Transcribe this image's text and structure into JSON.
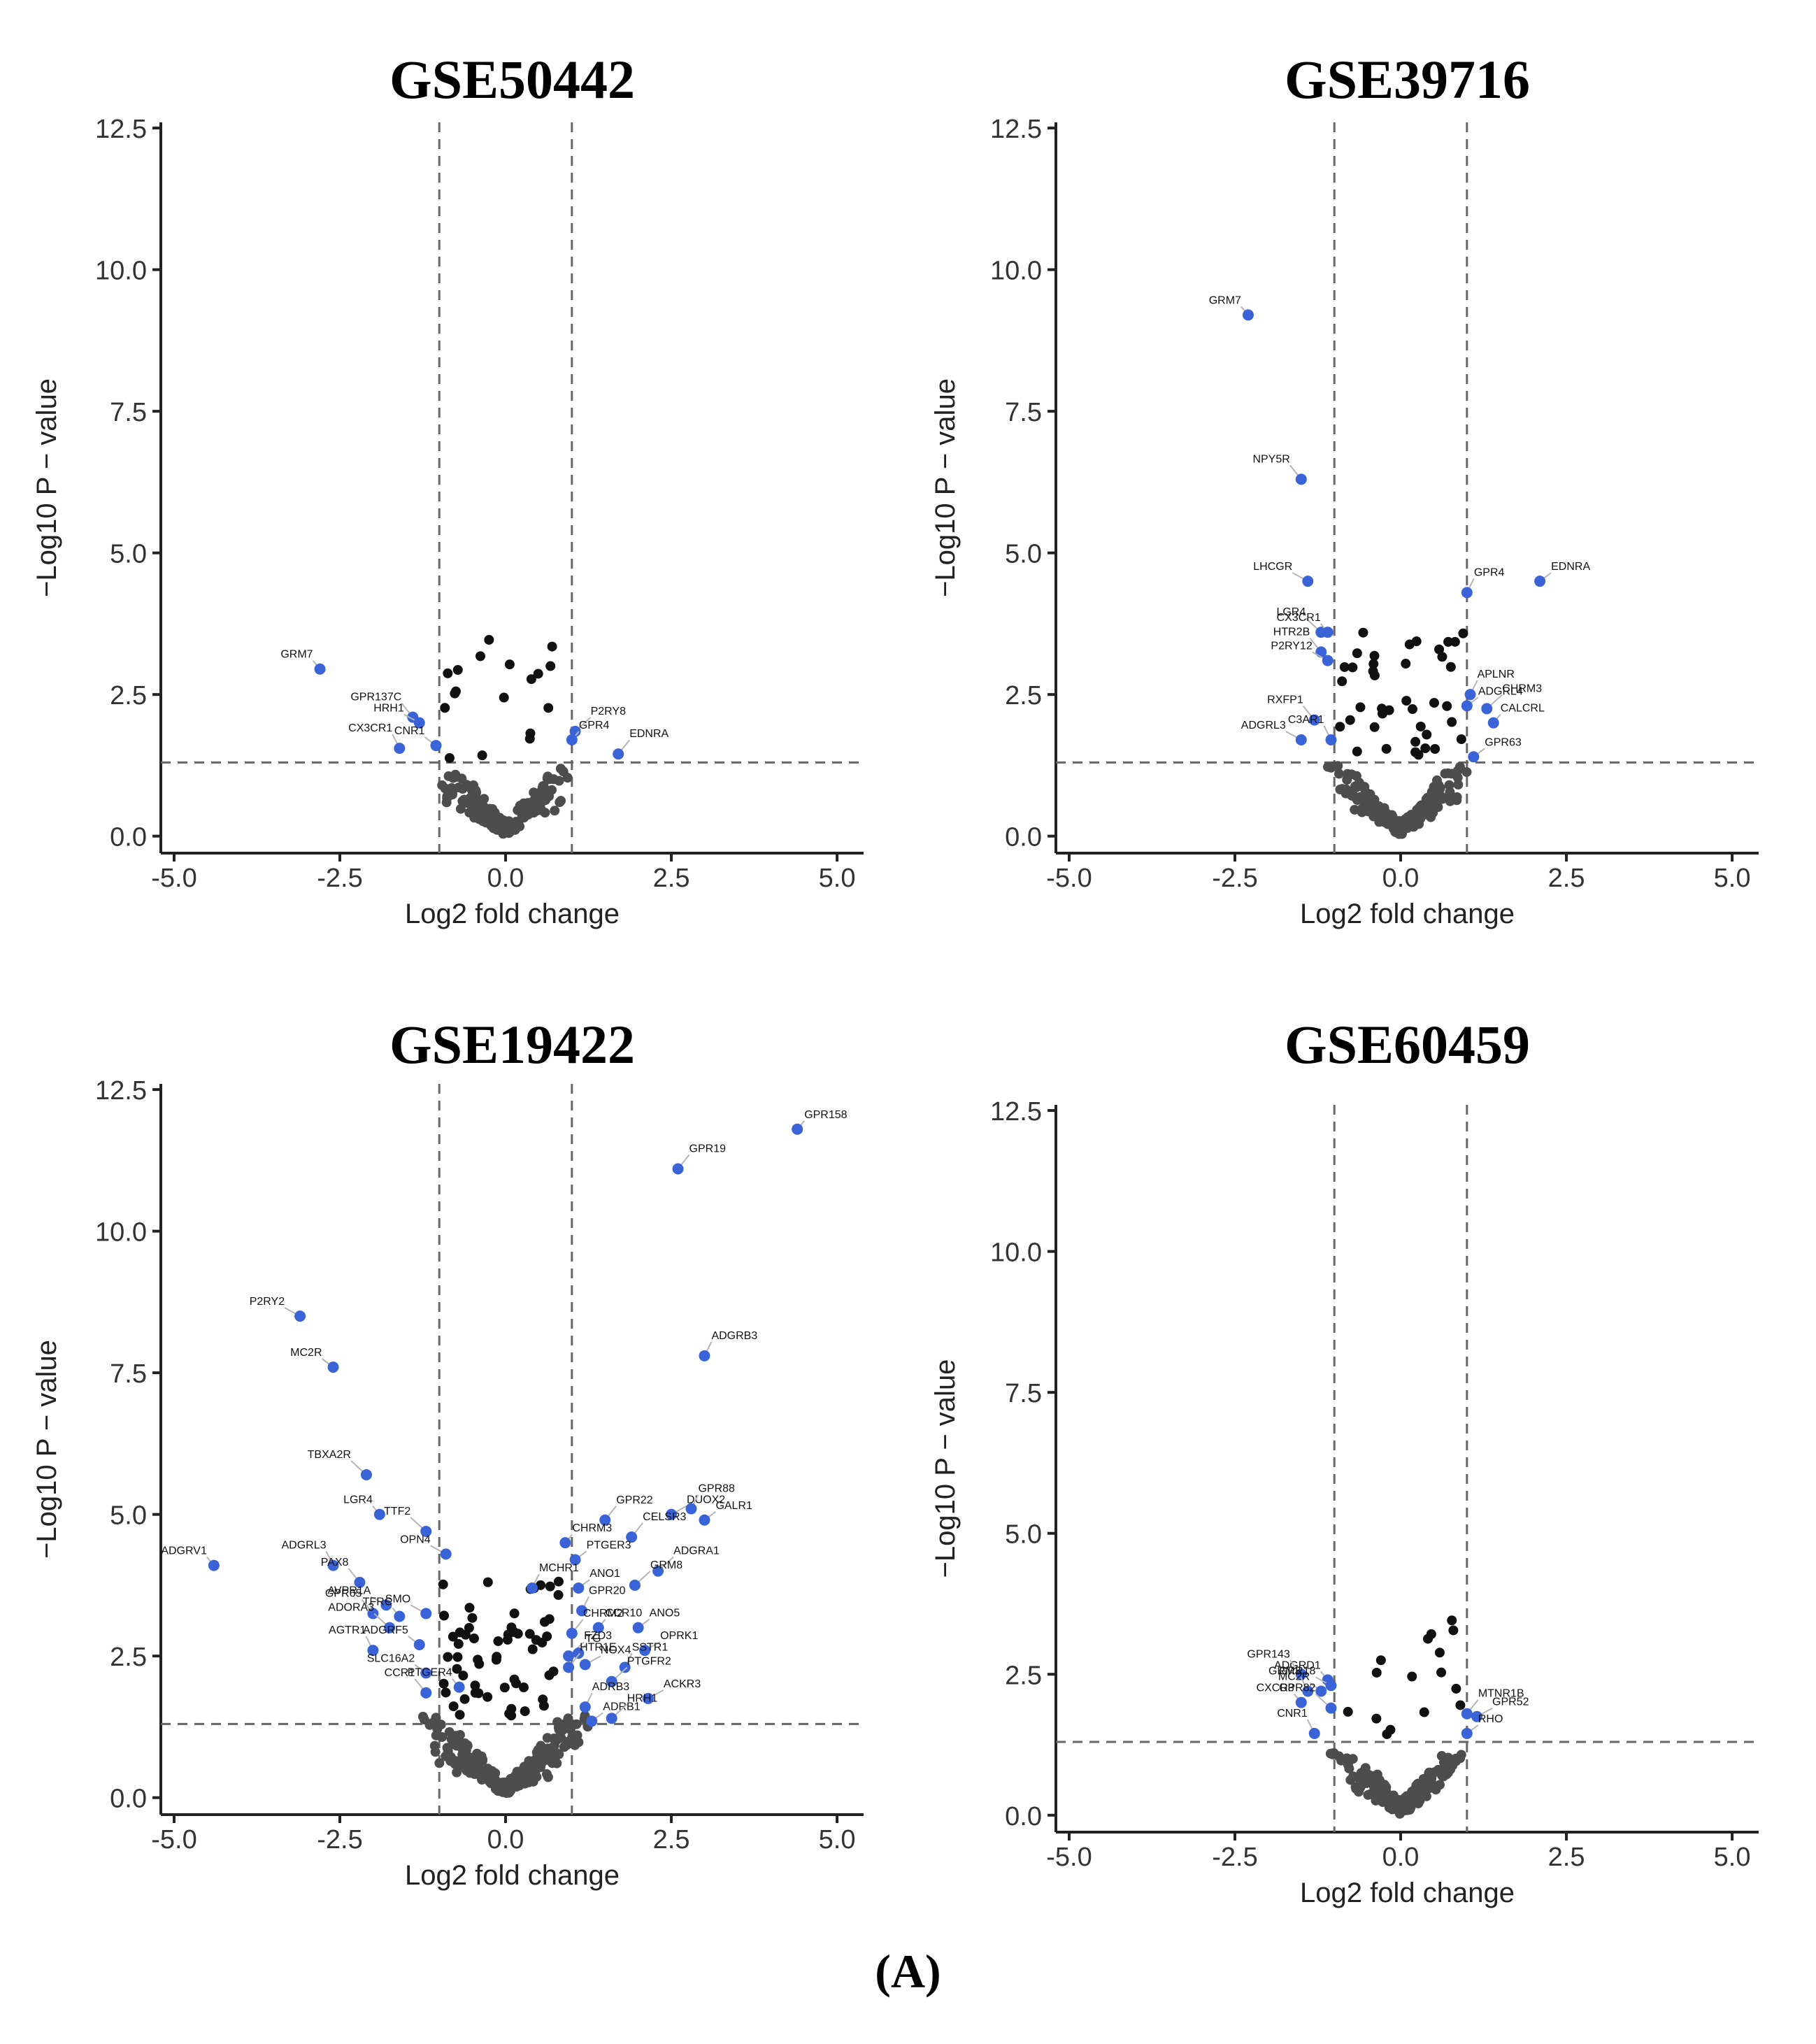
{
  "figure_label": "(A)",
  "colors": {
    "sig": "#3a63d8",
    "mid": "#111111",
    "ns": "#4d4d4d",
    "axis": "#222222",
    "guide": "#666666",
    "label_line": "#b5b5b5"
  },
  "chart_data": [
    {
      "type": "scatter",
      "title": "GSE50442",
      "xlabel": "Log2 fold change",
      "ylabel": "−Log10 P − value",
      "xlim": [
        -5.2,
        5.4
      ],
      "ylim": [
        -0.3,
        12.6
      ],
      "xticks": [
        -5.0,
        -2.5,
        0.0,
        2.5,
        5.0
      ],
      "yticks": [
        0.0,
        2.5,
        5.0,
        7.5,
        10.0,
        12.5
      ],
      "fc_cutoff": 1.0,
      "p_cutoff": 1.3,
      "labeled_points": [
        {
          "label": "GRM7",
          "x": -2.8,
          "y": 2.95
        },
        {
          "label": "GPR137C",
          "x": -1.4,
          "y": 2.1
        },
        {
          "label": "HRH1",
          "x": -1.3,
          "y": 2.0
        },
        {
          "label": "CX3CR1",
          "x": -1.6,
          "y": 1.55
        },
        {
          "label": "CNR1",
          "x": -1.05,
          "y": 1.6
        },
        {
          "label": "P2RY8",
          "x": 1.05,
          "y": 1.85
        },
        {
          "label": "GPR4",
          "x": 1.0,
          "y": 1.7
        },
        {
          "label": "EDNRA",
          "x": 1.7,
          "y": 1.45
        }
      ],
      "n_background": 170,
      "n_mid": 18,
      "bg_spread_y": 1.0,
      "bg_spread_x": 1.1
    },
    {
      "type": "scatter",
      "title": "GSE39716",
      "xlabel": "Log2 fold change",
      "ylabel": "−Log10 P − value",
      "xlim": [
        -5.2,
        5.4
      ],
      "ylim": [
        -0.3,
        12.6
      ],
      "xticks": [
        -5.0,
        -2.5,
        0.0,
        2.5,
        5.0
      ],
      "yticks": [
        0.0,
        2.5,
        5.0,
        7.5,
        10.0,
        12.5
      ],
      "fc_cutoff": 1.0,
      "p_cutoff": 1.3,
      "labeled_points": [
        {
          "label": "GRM7",
          "x": -2.3,
          "y": 9.2
        },
        {
          "label": "NPY5R",
          "x": -1.5,
          "y": 6.3
        },
        {
          "label": "LHCGR",
          "x": -1.4,
          "y": 4.5
        },
        {
          "label": "GPR4",
          "x": 1.0,
          "y": 4.3
        },
        {
          "label": "EDNRA",
          "x": 2.1,
          "y": 4.5
        },
        {
          "label": "LGR4",
          "x": -1.2,
          "y": 3.6
        },
        {
          "label": "CX3CR1",
          "x": -1.1,
          "y": 3.6
        },
        {
          "label": "HTR2B",
          "x": -1.2,
          "y": 3.25
        },
        {
          "label": "P2RY12",
          "x": -1.1,
          "y": 3.1
        },
        {
          "label": "APLNR",
          "x": 1.05,
          "y": 2.5
        },
        {
          "label": "ADGRL4",
          "x": 1.0,
          "y": 2.3
        },
        {
          "label": "CHRM3",
          "x": 1.3,
          "y": 2.25
        },
        {
          "label": "CALCRL",
          "x": 1.4,
          "y": 2.0
        },
        {
          "label": "RXFP1",
          "x": -1.3,
          "y": 2.05
        },
        {
          "label": "ADGRL3",
          "x": -1.5,
          "y": 1.7
        },
        {
          "label": "C3AR1",
          "x": -1.05,
          "y": 1.7
        },
        {
          "label": "GPR63",
          "x": 1.1,
          "y": 1.4
        }
      ],
      "n_background": 170,
      "n_mid": 40,
      "bg_spread_y": 1.1,
      "bg_spread_x": 1.2
    },
    {
      "type": "scatter",
      "title": "GSE19422",
      "xlabel": "Log2 fold change",
      "ylabel": "−Log10 P − value",
      "xlim": [
        -5.2,
        5.4
      ],
      "ylim": [
        -0.3,
        12.6
      ],
      "xticks": [
        -5.0,
        -2.5,
        0.0,
        2.5,
        5.0
      ],
      "yticks": [
        0.0,
        2.5,
        5.0,
        7.5,
        10.0,
        12.5
      ],
      "fc_cutoff": 1.0,
      "p_cutoff": 1.3,
      "labeled_points": [
        {
          "label": "GPR158",
          "x": 4.4,
          "y": 11.8
        },
        {
          "label": "GPR19",
          "x": 2.6,
          "y": 11.1
        },
        {
          "label": "P2RY2",
          "x": -3.1,
          "y": 8.5
        },
        {
          "label": "ADGRB3",
          "x": 3.0,
          "y": 7.8
        },
        {
          "label": "MC2R",
          "x": -2.6,
          "y": 7.6
        },
        {
          "label": "TBXA2R",
          "x": -2.1,
          "y": 5.7
        },
        {
          "label": "LGR4",
          "x": -1.9,
          "y": 5.0
        },
        {
          "label": "GPR22",
          "x": 1.5,
          "y": 4.9
        },
        {
          "label": "DUOX2",
          "x": 2.5,
          "y": 5.0
        },
        {
          "label": "GPR88",
          "x": 2.8,
          "y": 5.1
        },
        {
          "label": "GALR1",
          "x": 3.0,
          "y": 4.9
        },
        {
          "label": "TTF2",
          "x": -1.2,
          "y": 4.7
        },
        {
          "label": "CHRM3",
          "x": 0.9,
          "y": 4.5
        },
        {
          "label": "CELSR3",
          "x": 1.9,
          "y": 4.6
        },
        {
          "label": "OPN4",
          "x": -0.9,
          "y": 4.3
        },
        {
          "label": "ADGRL3",
          "x": -2.6,
          "y": 4.1
        },
        {
          "label": "PTGER3",
          "x": 1.05,
          "y": 4.2
        },
        {
          "label": "ADGRA1",
          "x": 2.3,
          "y": 4.0
        },
        {
          "label": "ADGRV1",
          "x": -4.4,
          "y": 4.1
        },
        {
          "label": "PAX8",
          "x": -2.2,
          "y": 3.8
        },
        {
          "label": "AVPR1A",
          "x": -1.8,
          "y": 3.4
        },
        {
          "label": "MCHR1",
          "x": 0.4,
          "y": 3.7
        },
        {
          "label": "ANO1",
          "x": 1.1,
          "y": 3.7
        },
        {
          "label": "GRM8",
          "x": 1.95,
          "y": 3.75
        },
        {
          "label": "TFRC",
          "x": -1.6,
          "y": 3.2
        },
        {
          "label": "GPR65",
          "x": -2.0,
          "y": 3.25
        },
        {
          "label": "SMO",
          "x": -1.2,
          "y": 3.25
        },
        {
          "label": "GPR20",
          "x": 1.15,
          "y": 3.3
        },
        {
          "label": "ANO5",
          "x": 2.0,
          "y": 3.0
        },
        {
          "label": "ADORA3",
          "x": -1.75,
          "y": 3.0
        },
        {
          "label": "CCR10",
          "x": 1.4,
          "y": 3.0
        },
        {
          "label": "CHRM2",
          "x": 1.0,
          "y": 2.9
        },
        {
          "label": "OPRK1",
          "x": 2.1,
          "y": 2.6
        },
        {
          "label": "AGTR1",
          "x": -2.0,
          "y": 2.6
        },
        {
          "label": "ADGRF5",
          "x": -1.3,
          "y": 2.7
        },
        {
          "label": "FZD3",
          "x": 0.95,
          "y": 2.5
        },
        {
          "label": "TG",
          "x": 1.1,
          "y": 2.55
        },
        {
          "label": "HTR1E",
          "x": 0.95,
          "y": 2.3
        },
        {
          "label": "NOX4",
          "x": 1.2,
          "y": 2.35
        },
        {
          "label": "SSTR1",
          "x": 1.8,
          "y": 2.3
        },
        {
          "label": "SLC16A2",
          "x": -1.2,
          "y": 2.2
        },
        {
          "label": "PTGFR2",
          "x": 1.6,
          "y": 2.05
        },
        {
          "label": "PTGER4",
          "x": -0.7,
          "y": 1.95
        },
        {
          "label": "CCR1",
          "x": -1.2,
          "y": 1.85
        },
        {
          "label": "ACKR3",
          "x": 2.15,
          "y": 1.75
        },
        {
          "label": "ADRB3",
          "x": 1.2,
          "y": 1.6
        },
        {
          "label": "ADRB1",
          "x": 1.3,
          "y": 1.35
        },
        {
          "label": "HRH1",
          "x": 1.6,
          "y": 1.4
        }
      ],
      "n_background": 260,
      "n_mid": 60,
      "bg_spread_y": 1.3,
      "bg_spread_x": 1.3
    },
    {
      "type": "scatter",
      "title": "GSE60459",
      "xlabel": "Log2 fold change",
      "ylabel": "−Log10 P − value",
      "xlim": [
        -5.2,
        5.4
      ],
      "ylim": [
        -0.3,
        12.6
      ],
      "xticks": [
        -5.0,
        -2.5,
        0.0,
        2.5,
        5.0
      ],
      "yticks": [
        0.0,
        2.5,
        5.0,
        7.5,
        10.0,
        12.5
      ],
      "fc_cutoff": 1.0,
      "p_cutoff": 1.3,
      "labeled_points": [
        {
          "label": "ADGRD1",
          "x": -1.1,
          "y": 2.4
        },
        {
          "label": "GPR143",
          "x": -1.5,
          "y": 2.5
        },
        {
          "label": "GPR18",
          "x": -1.05,
          "y": 2.3
        },
        {
          "label": "GRM3",
          "x": -1.4,
          "y": 2.2
        },
        {
          "label": "MC2R",
          "x": -1.2,
          "y": 2.2
        },
        {
          "label": "GPR82",
          "x": -1.05,
          "y": 1.9
        },
        {
          "label": "CXCR3",
          "x": -1.5,
          "y": 2.0
        },
        {
          "label": "MTNR1B",
          "x": 1.0,
          "y": 1.8
        },
        {
          "label": "GPR52",
          "x": 1.15,
          "y": 1.75
        },
        {
          "label": "CNR1",
          "x": -1.3,
          "y": 1.45
        },
        {
          "label": "RHO",
          "x": 1.0,
          "y": 1.45
        }
      ],
      "n_background": 200,
      "n_mid": 16,
      "bg_spread_y": 1.0,
      "bg_spread_x": 1.1
    }
  ]
}
